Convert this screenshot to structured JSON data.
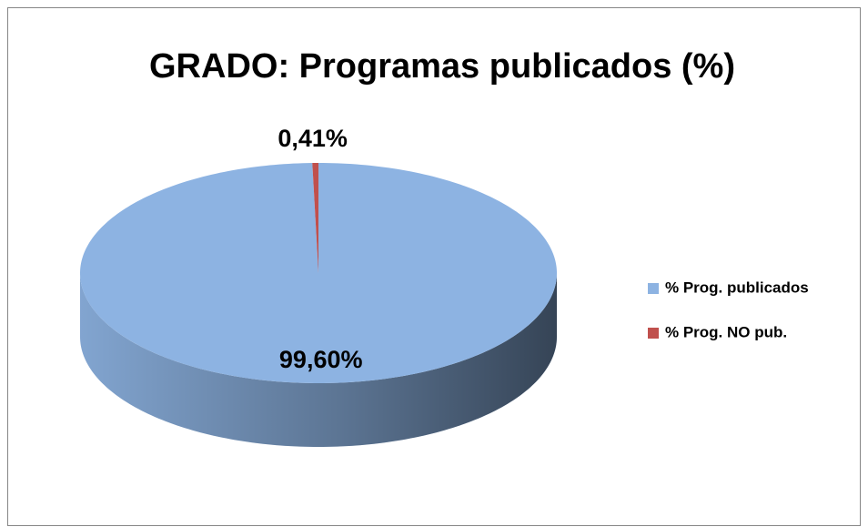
{
  "chart_data": {
    "type": "pie",
    "title": "GRADO: Programas publicados (%)",
    "categories": [
      "% Prog. publicados",
      "% Prog. NO pub."
    ],
    "values": [
      99.6,
      0.41
    ],
    "value_labels": [
      "99,60%",
      "0,41%"
    ],
    "colors": [
      "#8db3e2",
      "#c0504d"
    ],
    "legend": "right",
    "start_angle": 0,
    "direction": "clockwise"
  }
}
